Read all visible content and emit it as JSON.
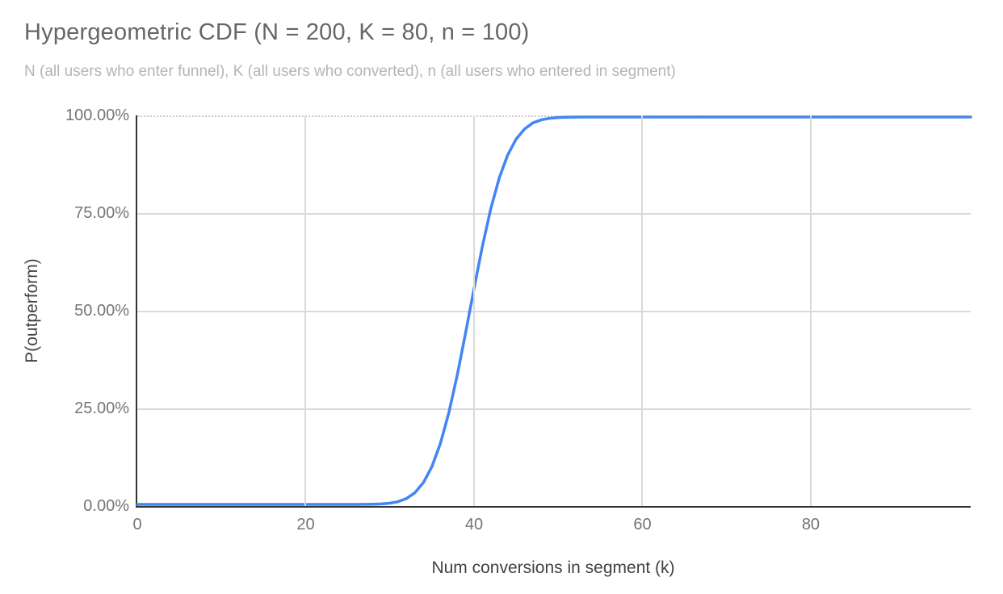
{
  "chart_data": {
    "type": "line",
    "title": "Hypergeometric CDF (N = 200, K = 80, n = 100)",
    "subtitle": "N (all users who enter funnel), K (all users who converted), n (all users who entered in segment)",
    "xlabel": "Num conversions in segment (k)",
    "ylabel": "P(outperform)",
    "xlim": [
      0,
      99
    ],
    "ylim": [
      0,
      1
    ],
    "grid": true,
    "legend_position": "none",
    "parameters": {
      "N": 200,
      "K": 80,
      "n": 100
    },
    "x_ticks": [
      {
        "label": "0",
        "value": 0
      },
      {
        "label": "20",
        "value": 20
      },
      {
        "label": "40",
        "value": 40
      },
      {
        "label": "60",
        "value": 60
      },
      {
        "label": "80",
        "value": 80
      }
    ],
    "y_ticks": [
      {
        "label": "100.00%",
        "value": 1.0
      },
      {
        "label": "75.00%",
        "value": 0.75
      },
      {
        "label": "50.00%",
        "value": 0.5
      },
      {
        "label": "25.00%",
        "value": 0.25
      },
      {
        "label": "0.00%",
        "value": 0.0
      }
    ],
    "series": [
      {
        "name": "P(outperform)",
        "color": "#4285f4",
        "line_width": 3.5,
        "points": [
          [
            0,
            0
          ],
          [
            1,
            0
          ],
          [
            2,
            0
          ],
          [
            3,
            0
          ],
          [
            4,
            0
          ],
          [
            5,
            0
          ],
          [
            6,
            0
          ],
          [
            7,
            0
          ],
          [
            8,
            0
          ],
          [
            9,
            0
          ],
          [
            10,
            0
          ],
          [
            11,
            0
          ],
          [
            12,
            0
          ],
          [
            13,
            0
          ],
          [
            14,
            0
          ],
          [
            15,
            0
          ],
          [
            16,
            0
          ],
          [
            17,
            0
          ],
          [
            18,
            0
          ],
          [
            19,
            0
          ],
          [
            20,
            0
          ],
          [
            21,
            0
          ],
          [
            22,
            0
          ],
          [
            23,
            1e-06
          ],
          [
            24,
            4e-06
          ],
          [
            25,
            1.5e-05
          ],
          [
            26,
            5e-05
          ],
          [
            27,
            0.00016
          ],
          [
            28,
            0.00047
          ],
          [
            29,
            0.00125
          ],
          [
            30,
            0.0031
          ],
          [
            31,
            0.0072
          ],
          [
            32,
            0.0154
          ],
          [
            33,
            0.0307
          ],
          [
            34,
            0.0567
          ],
          [
            35,
            0.0977
          ],
          [
            36,
            0.157
          ],
          [
            37,
            0.236
          ],
          [
            38,
            0.333
          ],
          [
            39,
            0.443
          ],
          [
            40,
            0.557
          ],
          [
            41,
            0.667
          ],
          [
            42,
            0.764
          ],
          [
            43,
            0.843
          ],
          [
            44,
            0.902
          ],
          [
            45,
            0.943
          ],
          [
            46,
            0.969
          ],
          [
            47,
            0.985
          ],
          [
            48,
            0.9928
          ],
          [
            49,
            0.9969
          ],
          [
            50,
            0.9988
          ],
          [
            51,
            0.9995
          ],
          [
            52,
            0.9998
          ],
          [
            53,
            0.9999
          ],
          [
            54,
            1
          ],
          [
            55,
            1
          ],
          [
            56,
            1
          ],
          [
            57,
            1
          ],
          [
            58,
            1
          ],
          [
            59,
            1
          ],
          [
            60,
            1
          ],
          [
            61,
            1
          ],
          [
            62,
            1
          ],
          [
            63,
            1
          ],
          [
            64,
            1
          ],
          [
            65,
            1
          ],
          [
            66,
            1
          ],
          [
            67,
            1
          ],
          [
            68,
            1
          ],
          [
            69,
            1
          ],
          [
            70,
            1
          ],
          [
            71,
            1
          ],
          [
            72,
            1
          ],
          [
            73,
            1
          ],
          [
            74,
            1
          ],
          [
            75,
            1
          ],
          [
            76,
            1
          ],
          [
            77,
            1
          ],
          [
            78,
            1
          ],
          [
            79,
            1
          ],
          [
            80,
            1
          ],
          [
            81,
            1
          ],
          [
            82,
            1
          ],
          [
            83,
            1
          ],
          [
            84,
            1
          ],
          [
            85,
            1
          ],
          [
            86,
            1
          ],
          [
            87,
            1
          ],
          [
            88,
            1
          ],
          [
            89,
            1
          ],
          [
            90,
            1
          ],
          [
            91,
            1
          ],
          [
            92,
            1
          ],
          [
            93,
            1
          ],
          [
            94,
            1
          ],
          [
            95,
            1
          ],
          [
            96,
            1
          ],
          [
            97,
            1
          ],
          [
            98,
            1
          ],
          [
            99,
            1
          ]
        ]
      }
    ],
    "colors": {
      "line": "#4285f4",
      "gridline": "#d9d9d9",
      "axis": "#333333",
      "tick_label": "#757575",
      "axis_title": "#424242",
      "title": "#666666",
      "subtitle": "#b5b5b5",
      "background": "#ffffff"
    }
  }
}
